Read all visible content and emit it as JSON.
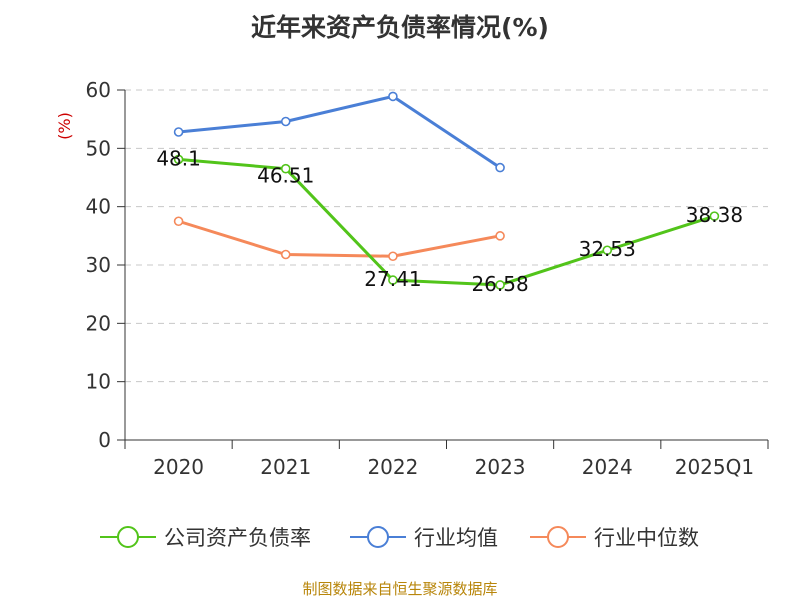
{
  "title": "近年来资产负债率情况(%)",
  "footer": "制图数据来自恒生聚源数据库",
  "chart_data": {
    "type": "line",
    "categories": [
      "2020",
      "2021",
      "2022",
      "2023",
      "2024",
      "2025Q1"
    ],
    "ylabel": "(%)",
    "ylim": [
      0,
      60
    ],
    "yticks": [
      0,
      10,
      20,
      30,
      40,
      50,
      60
    ],
    "grid": true,
    "legend_position": "bottom",
    "series": [
      {
        "name": "公司资产负债率",
        "color": "#52c41a",
        "values": [
          48.1,
          46.51,
          27.41,
          26.58,
          32.53,
          38.38
        ],
        "labels": [
          "48.1",
          "46.51",
          "27.41",
          "26.58",
          "32.53",
          "38.38"
        ]
      },
      {
        "name": "行业均值",
        "color": "#4a7fd6",
        "values": [
          52.8,
          54.6,
          58.9,
          46.7,
          null,
          null
        ]
      },
      {
        "name": "行业中位数",
        "color": "#f5895a",
        "values": [
          37.5,
          31.8,
          31.5,
          35.0,
          null,
          null
        ]
      }
    ]
  }
}
